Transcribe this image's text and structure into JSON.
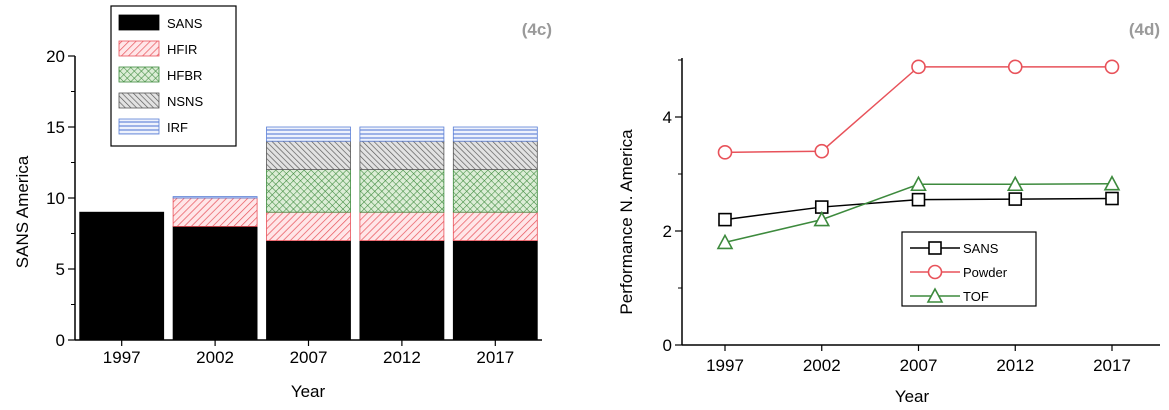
{
  "chart_data": [
    {
      "panel": "(4c)",
      "type": "bar",
      "stacked": true,
      "categories": [
        "1997",
        "2002",
        "2007",
        "2012",
        "2017"
      ],
      "series": [
        {
          "name": "SANS",
          "values": [
            9,
            8,
            7,
            7,
            7
          ],
          "color": "#000000",
          "pattern": "solid"
        },
        {
          "name": "HFIR",
          "values": [
            0,
            2,
            2,
            2,
            2
          ],
          "color": "#e8525a",
          "pattern": "diagonal-hatch"
        },
        {
          "name": "HFBR",
          "values": [
            0,
            0,
            3,
            3,
            3
          ],
          "color": "#3d8a3d",
          "pattern": "cross-hatch"
        },
        {
          "name": "NSNS",
          "values": [
            0,
            0,
            2,
            2,
            2
          ],
          "color": "#555555",
          "pattern": "dense-diagonal-hatch"
        },
        {
          "name": "IRF",
          "values": [
            0,
            0.1,
            1,
            1,
            1
          ],
          "color": "#5b7fd6",
          "pattern": "horizontal-lines"
        }
      ],
      "xlabel": "Year",
      "ylabel": "SANS America",
      "ylim": [
        0,
        20
      ],
      "yticks": [
        "0",
        "5",
        "10",
        "15",
        "20"
      ],
      "legend_position": "top-left"
    },
    {
      "panel": "(4d)",
      "type": "line",
      "x": [
        "1997",
        "2002",
        "2007",
        "2012",
        "2017"
      ],
      "series": [
        {
          "name": "SANS",
          "values": [
            2.2,
            2.42,
            2.55,
            2.56,
            2.57
          ],
          "color": "#000000",
          "marker": "square"
        },
        {
          "name": "Powder",
          "values": [
            3.38,
            3.4,
            4.88,
            4.88,
            4.88
          ],
          "color": "#e8525a",
          "marker": "circle"
        },
        {
          "name": "TOF",
          "values": [
            1.8,
            2.2,
            2.82,
            2.82,
            2.83
          ],
          "color": "#3d8a3d",
          "marker": "triangle"
        }
      ],
      "xlabel": "Year",
      "ylabel": "Performance N. America",
      "ylim": [
        0,
        5
      ],
      "yticks": [
        "0",
        "2",
        "4"
      ],
      "legend_position": "bottom-right"
    }
  ]
}
